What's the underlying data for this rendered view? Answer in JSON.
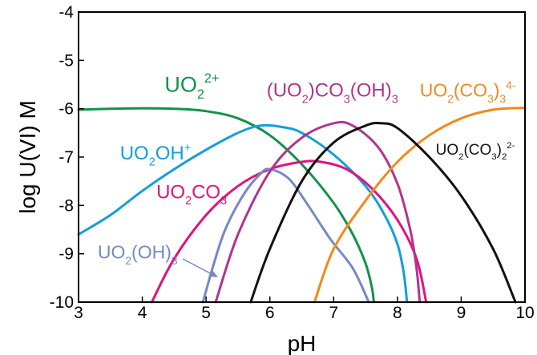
{
  "chart_data": {
    "type": "line",
    "title": "",
    "xlabel": "pH",
    "ylabel": "log U(VI) M",
    "xlim": [
      3,
      10
    ],
    "ylim": [
      -10,
      -4
    ],
    "xticks": [
      "3",
      "4",
      "5",
      "6",
      "7",
      "8",
      "9",
      "10"
    ],
    "yticks": [
      "-4",
      "-5",
      "-6",
      "-7",
      "-8",
      "-9",
      "-10"
    ],
    "grid": false,
    "legend": "inline labels",
    "series": [
      {
        "color": "#12924a",
        "label_parts": [
          [
            "UO",
            ""
          ],
          [
            "2",
            "sub"
          ],
          [
            "2+",
            "sup"
          ]
        ],
        "label_at": [
          4.35,
          -5.65
        ],
        "label_size": 27,
        "points": [
          [
            3,
            -6.02
          ],
          [
            3.5,
            -6.0
          ],
          [
            4,
            -5.99
          ],
          [
            4.5,
            -6.0
          ],
          [
            5,
            -6.05
          ],
          [
            5.5,
            -6.2
          ],
          [
            6,
            -6.55
          ],
          [
            6.5,
            -7.15
          ],
          [
            7,
            -7.95
          ],
          [
            7.3,
            -8.6
          ],
          [
            7.5,
            -9.2
          ],
          [
            7.6,
            -9.7
          ],
          [
            7.63,
            -10
          ]
        ]
      },
      {
        "color": "#139fd9",
        "label_parts": [
          [
            "UO",
            ""
          ],
          [
            "2",
            "sub"
          ],
          [
            "OH",
            ""
          ],
          [
            "+",
            "sup"
          ]
        ],
        "label_at": [
          3.65,
          -7.05
        ],
        "label_size": 24,
        "points": [
          [
            3,
            -8.6
          ],
          [
            3.5,
            -8.2
          ],
          [
            4,
            -7.7
          ],
          [
            4.5,
            -7.25
          ],
          [
            5,
            -6.85
          ],
          [
            5.5,
            -6.5
          ],
          [
            5.85,
            -6.35
          ],
          [
            6.2,
            -6.38
          ],
          [
            6.5,
            -6.5
          ],
          [
            7,
            -6.95
          ],
          [
            7.5,
            -7.6
          ],
          [
            7.8,
            -8.2
          ],
          [
            8,
            -8.8
          ],
          [
            8.1,
            -9.4
          ],
          [
            8.15,
            -10
          ]
        ]
      },
      {
        "color": "#e0137d",
        "label_parts": [
          [
            "UO",
            ""
          ],
          [
            "2",
            "sub"
          ],
          [
            "CO",
            ""
          ],
          [
            "3",
            "sub"
          ]
        ],
        "label_at": [
          4.22,
          -7.85
        ],
        "label_size": 24,
        "points": [
          [
            4.15,
            -10
          ],
          [
            4.5,
            -9.1
          ],
          [
            5,
            -8.2
          ],
          [
            5.5,
            -7.6
          ],
          [
            6,
            -7.25
          ],
          [
            6.5,
            -7.1
          ],
          [
            6.8,
            -7.1
          ],
          [
            7.2,
            -7.25
          ],
          [
            7.6,
            -7.65
          ],
          [
            8,
            -8.3
          ],
          [
            8.3,
            -9.1
          ],
          [
            8.45,
            -10
          ]
        ]
      },
      {
        "color": "#7788c4",
        "label_parts": [
          [
            "UO",
            ""
          ],
          [
            "2",
            "sub"
          ],
          [
            "(OH)",
            ""
          ],
          [
            "3",
            "sub"
          ]
        ],
        "label_at": [
          3.3,
          -9.1
        ],
        "label_size": 23,
        "points": [
          [
            4.95,
            -10
          ],
          [
            5.1,
            -9.3
          ],
          [
            5.3,
            -8.5
          ],
          [
            5.6,
            -7.75
          ],
          [
            5.85,
            -7.35
          ],
          [
            6.0,
            -7.25
          ],
          [
            6.3,
            -7.45
          ],
          [
            6.6,
            -8.0
          ],
          [
            6.95,
            -8.7
          ],
          [
            7.3,
            -9.3
          ],
          [
            7.55,
            -10
          ]
        ]
      },
      {
        "color": "#b0358c",
        "label_parts": [
          [
            "(UO",
            ""
          ],
          [
            "2",
            "sub"
          ],
          [
            ")CO",
            ""
          ],
          [
            "3",
            "sub"
          ],
          [
            "(OH)",
            ""
          ],
          [
            "3",
            "sub"
          ]
        ],
        "label_at": [
          5.95,
          -5.75
        ],
        "label_size": 24,
        "points": [
          [
            5.15,
            -10
          ],
          [
            5.5,
            -8.6
          ],
          [
            6,
            -7.3
          ],
          [
            6.5,
            -6.6
          ],
          [
            7,
            -6.3
          ],
          [
            7.3,
            -6.35
          ],
          [
            7.7,
            -6.8
          ],
          [
            8,
            -7.55
          ],
          [
            8.2,
            -8.5
          ],
          [
            8.3,
            -9.3
          ],
          [
            8.35,
            -10
          ]
        ]
      },
      {
        "color": "#f08a1c",
        "label_parts": [
          [
            "UO",
            ""
          ],
          [
            "2",
            "sub"
          ],
          [
            "(CO",
            ""
          ],
          [
            "3",
            "sub"
          ],
          [
            ")",
            ""
          ],
          [
            "3",
            "sub"
          ],
          [
            "4-",
            "sup"
          ]
        ],
        "label_at": [
          8.35,
          -5.75
        ],
        "label_size": 23,
        "points": [
          [
            6.7,
            -10
          ],
          [
            7,
            -8.9
          ],
          [
            7.5,
            -7.9
          ],
          [
            8,
            -7.1
          ],
          [
            8.5,
            -6.55
          ],
          [
            9,
            -6.2
          ],
          [
            9.5,
            -6.02
          ],
          [
            10,
            -5.98
          ]
        ]
      },
      {
        "color": "#111111",
        "label_parts": [
          [
            "UO",
            ""
          ],
          [
            "2",
            "sub"
          ],
          [
            "(CO",
            ""
          ],
          [
            "3",
            "sub"
          ],
          [
            ")",
            ""
          ],
          [
            "2",
            "sub"
          ],
          [
            "2-",
            "sup"
          ]
        ],
        "label_at": [
          8.6,
          -6.95
        ],
        "label_size": 19,
        "points": [
          [
            5.7,
            -10
          ],
          [
            6,
            -8.9
          ],
          [
            6.5,
            -7.5
          ],
          [
            7,
            -6.7
          ],
          [
            7.5,
            -6.35
          ],
          [
            7.75,
            -6.3
          ],
          [
            8,
            -6.4
          ],
          [
            8.5,
            -7.0
          ],
          [
            9,
            -7.8
          ],
          [
            9.5,
            -8.9
          ],
          [
            9.85,
            -10
          ]
        ]
      }
    ]
  }
}
